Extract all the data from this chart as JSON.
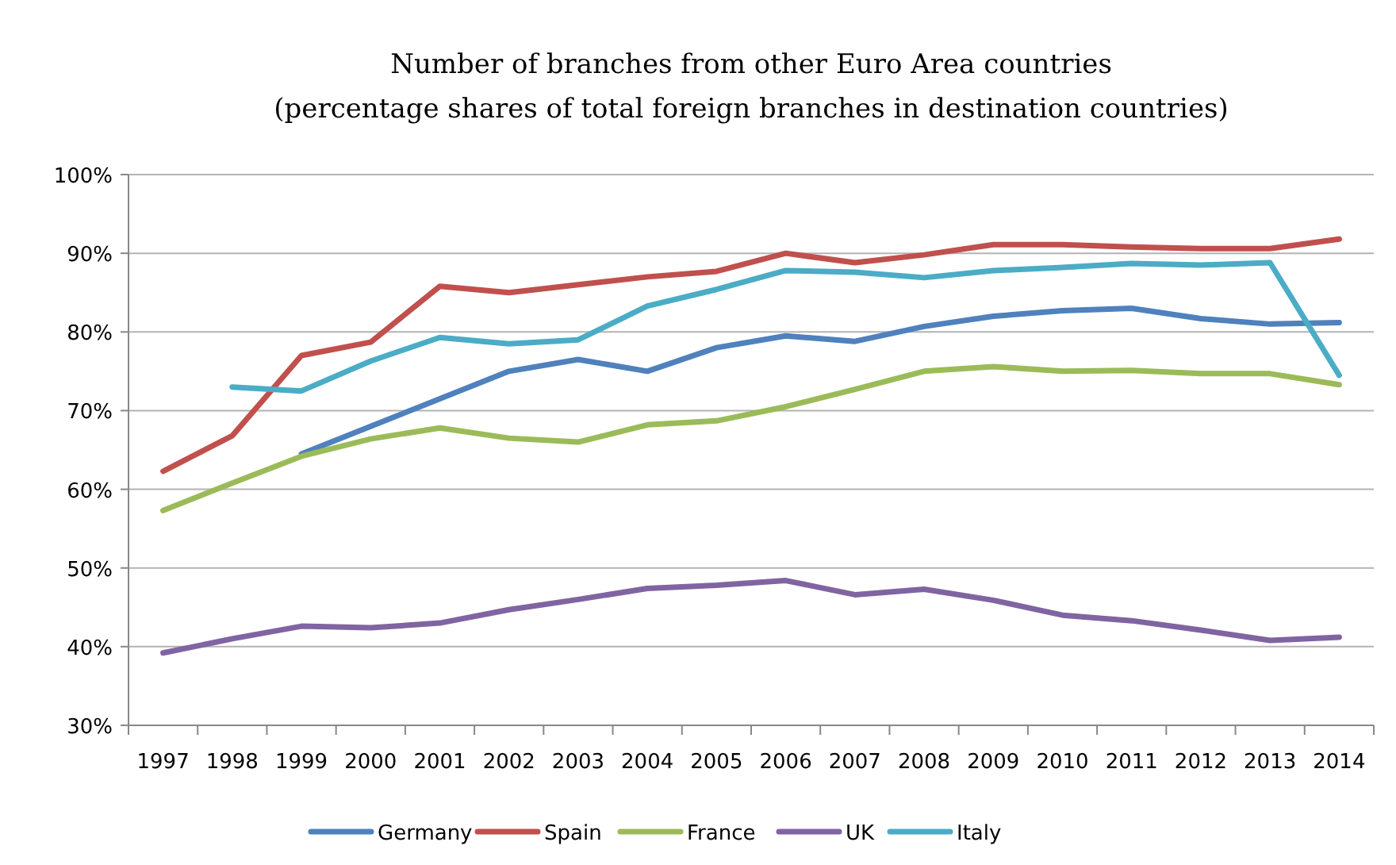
{
  "chart_data": {
    "type": "line",
    "title": "Number of branches from other Euro Area countries",
    "subtitle": "(percentage shares of total foreign branches in destination countries)",
    "categories": [
      "1997",
      "1998",
      "1999",
      "2000",
      "2001",
      "2002",
      "2003",
      "2004",
      "2005",
      "2006",
      "2007",
      "2008",
      "2009",
      "2010",
      "2011",
      "2012",
      "2013",
      "2014"
    ],
    "series": [
      {
        "name": "Germany",
        "color": "#4f81bd",
        "values": [
          null,
          null,
          64.5,
          68,
          71.5,
          75,
          76.5,
          75,
          78,
          79.5,
          78.8,
          80.7,
          82,
          82.7,
          83,
          81.7,
          81,
          81.2
        ]
      },
      {
        "name": "Spain",
        "color": "#c0504d",
        "values": [
          62.3,
          66.8,
          77,
          78.7,
          85.8,
          85,
          86,
          87,
          87.7,
          90,
          88.8,
          89.8,
          91.1,
          91.1,
          90.8,
          90.6,
          90.6,
          91.8
        ]
      },
      {
        "name": "France",
        "color": "#9bbb59",
        "values": [
          57.3,
          60.8,
          64.2,
          66.4,
          67.8,
          66.5,
          66,
          68.2,
          68.7,
          70.5,
          72.7,
          75,
          75.6,
          75,
          75.1,
          74.7,
          74.7,
          73.3
        ]
      },
      {
        "name": "UK",
        "color": "#8064a2",
        "values": [
          39.2,
          41,
          42.6,
          42.4,
          43,
          44.7,
          46,
          47.4,
          47.8,
          48.4,
          46.6,
          47.3,
          45.9,
          44,
          43.3,
          42.1,
          40.8,
          41.2
        ]
      },
      {
        "name": "Italy",
        "color": "#4bacc6",
        "values": [
          null,
          73,
          72.5,
          76.3,
          79.3,
          78.5,
          79,
          83.3,
          85.4,
          87.8,
          87.6,
          86.9,
          87.8,
          88.2,
          88.7,
          88.5,
          88.8,
          74.5
        ]
      }
    ],
    "ylim": [
      30,
      100
    ],
    "yticks": [
      {
        "value": 30,
        "label": "30%"
      },
      {
        "value": 40,
        "label": "40%"
      },
      {
        "value": 50,
        "label": "50%"
      },
      {
        "value": 60,
        "label": "60%"
      },
      {
        "value": 70,
        "label": "70%"
      },
      {
        "value": 80,
        "label": "80%"
      },
      {
        "value": 90,
        "label": "90%"
      },
      {
        "value": 100,
        "label": "100%"
      }
    ],
    "grid": "y",
    "legend": "bottom",
    "marker": "none",
    "line_style": "solid"
  }
}
